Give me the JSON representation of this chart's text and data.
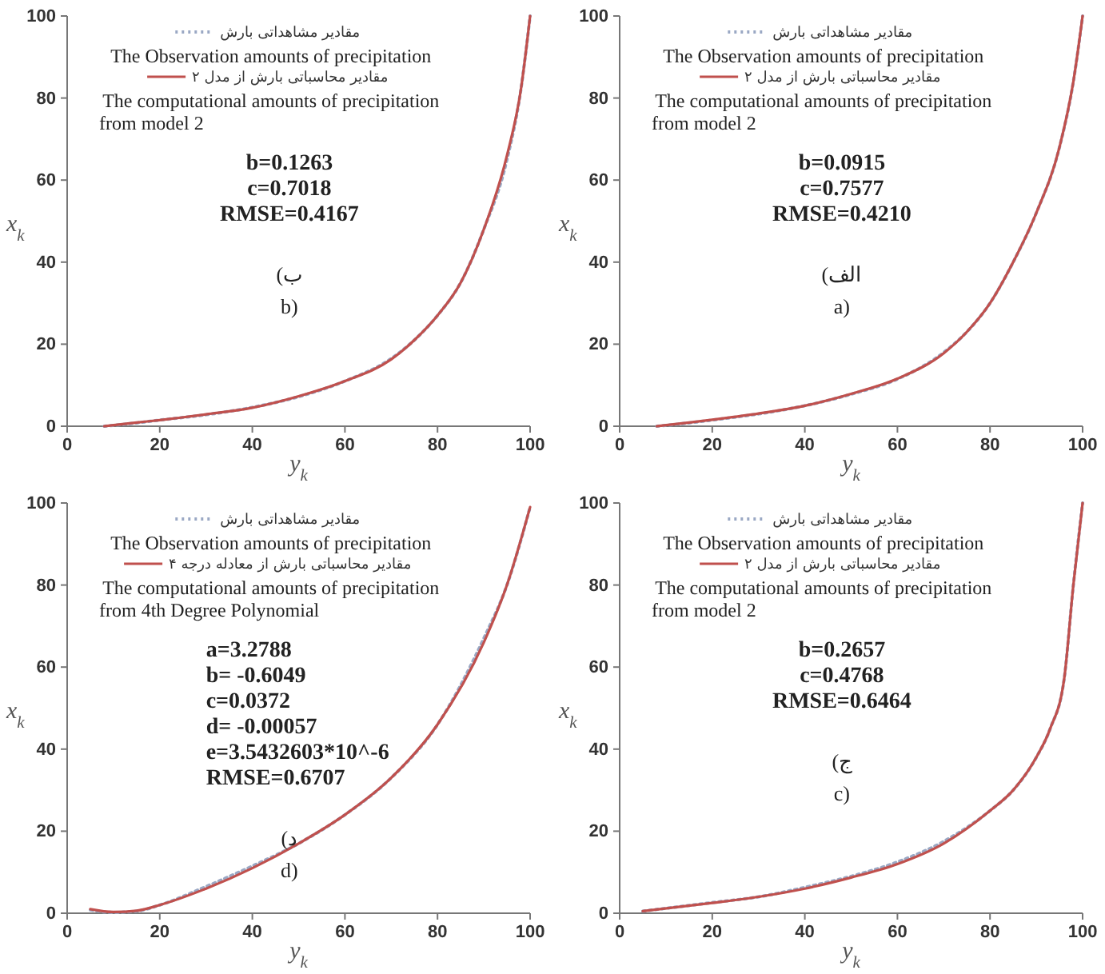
{
  "chart_data": [
    {
      "type": "line",
      "xlabel": "y$_{k}$",
      "ylabel": "x$_{k}$",
      "xlim": [
        0,
        100
      ],
      "ylim": [
        0,
        100
      ],
      "xticks": [
        0,
        20,
        40,
        60,
        80,
        100
      ],
      "yticks": [
        0,
        20,
        40,
        60,
        80,
        100
      ],
      "legend": "top",
      "annotations": [
        "b=0.1263",
        "c=0.7018",
        "RMSE=0.4167",
        "ب)",
        "b)"
      ],
      "series": [
        {
          "name": "مقادیر مشاهداتی بارش\nThe Observation amounts of precipitation",
          "color": "#9aa8c4",
          "line_style": "dotted",
          "x": [
            8,
            15,
            20,
            30,
            40,
            50,
            60,
            70,
            75,
            80,
            85,
            90,
            95,
            98,
            100
          ],
          "values": [
            0,
            0.8,
            1.5,
            2.8,
            4.6,
            7.2,
            11,
            16.5,
            21,
            27,
            35,
            48,
            65,
            82,
            100
          ]
        },
        {
          "name": "مقادیر محاسباتی بارش از مدل ۲\nThe computational amounts of precipitation from model 2",
          "color": "#c0504d",
          "line_style": "solid",
          "x": [
            8,
            15,
            20,
            30,
            40,
            50,
            60,
            70,
            75,
            80,
            85,
            90,
            95,
            98,
            100
          ],
          "values": [
            0,
            0.9,
            1.5,
            2.9,
            4.5,
            7.3,
            11,
            16.3,
            21,
            27,
            35,
            48,
            66,
            82,
            100
          ]
        }
      ]
    },
    {
      "type": "line",
      "xlabel": "y$_{k}$",
      "ylabel": "x$_{k}$",
      "xlim": [
        0,
        100
      ],
      "ylim": [
        0,
        100
      ],
      "xticks": [
        0,
        20,
        40,
        60,
        80,
        100
      ],
      "yticks": [
        0,
        20,
        40,
        60,
        80,
        100
      ],
      "legend": "top",
      "annotations": [
        "b=0.0915",
        "c=0.7577",
        "RMSE=0.4210",
        "الف)",
        "a)"
      ],
      "series": [
        {
          "name": "مقادیر مشاهداتی بارش\nThe Observation amounts of precipitation",
          "color": "#9aa8c4",
          "line_style": "dotted",
          "x": [
            8,
            15,
            20,
            30,
            40,
            50,
            60,
            70,
            75,
            80,
            85,
            90,
            95,
            98,
            100
          ],
          "values": [
            0,
            0.8,
            1.5,
            3,
            5,
            7.8,
            11.5,
            18,
            23,
            30,
            40,
            52,
            68,
            84,
            100
          ]
        },
        {
          "name": "مقادیر محاسباتی بارش از مدل ۲\nThe computational amounts of precipitation from model 2",
          "color": "#c0504d",
          "line_style": "solid",
          "x": [
            8,
            15,
            20,
            30,
            40,
            50,
            60,
            70,
            75,
            80,
            85,
            90,
            95,
            98,
            100
          ],
          "values": [
            0,
            0.9,
            1.6,
            3.1,
            5,
            7.9,
            11.6,
            17.8,
            23,
            30,
            40,
            52,
            68,
            84,
            100
          ]
        }
      ]
    },
    {
      "type": "line",
      "xlabel": "y$_{k}$",
      "ylabel": "x$_{k}$",
      "xlim": [
        0,
        100
      ],
      "ylim": [
        0,
        100
      ],
      "xticks": [
        0,
        20,
        40,
        60,
        80,
        100
      ],
      "yticks": [
        0,
        20,
        40,
        60,
        80,
        100
      ],
      "legend": "top",
      "annotations": [
        "a=3.2788",
        "b= -0.6049",
        "c=0.0372",
        "d= -0.00057",
        "e=3.5432603*10^-6",
        "RMSE=0.6707",
        "د)",
        "d)"
      ],
      "series": [
        {
          "name": "مقادیر مشاهداتی بارش\nThe Observation amounts of precipitation",
          "color": "#9aa8c4",
          "line_style": "dotted",
          "x": [
            5,
            10,
            15,
            20,
            30,
            40,
            50,
            60,
            70,
            80,
            90,
            95,
            100
          ],
          "values": [
            0.8,
            0.2,
            0.5,
            2,
            6.5,
            11.5,
            17,
            24,
            33,
            46,
            67,
            80,
            99
          ]
        },
        {
          "name": "مقادیر محاسباتی بارش از معادله درجه ۴\nThe computational amounts of precipitation from 4th Degree Polynomial",
          "color": "#c0504d",
          "line_style": "solid",
          "x": [
            5,
            10,
            15,
            20,
            30,
            40,
            50,
            60,
            70,
            80,
            90,
            95,
            100
          ],
          "values": [
            1,
            0.3,
            0.6,
            2,
            6,
            11,
            17,
            24,
            33,
            46,
            66,
            80,
            99
          ]
        }
      ]
    },
    {
      "type": "line",
      "xlabel": "y$_{k}$",
      "ylabel": "x$_{k}$",
      "xlim": [
        0,
        100
      ],
      "ylim": [
        0,
        100
      ],
      "xticks": [
        0,
        20,
        40,
        60,
        80,
        100
      ],
      "yticks": [
        0,
        20,
        40,
        60,
        80,
        100
      ],
      "legend": "top",
      "annotations": [
        "b=0.2657",
        "c=0.4768",
        "RMSE=0.6464",
        "ج)",
        "c)"
      ],
      "series": [
        {
          "name": "مقادیر مشاهداتی بارش\nThe Observation amounts of precipitation",
          "color": "#9aa8c4",
          "line_style": "dotted",
          "x": [
            5,
            20,
            30,
            40,
            50,
            60,
            70,
            80,
            85,
            90,
            93,
            96,
            98,
            100
          ],
          "values": [
            0.5,
            2.6,
            4,
            6.3,
            9,
            12.5,
            17.5,
            25,
            30,
            38,
            45,
            57,
            80,
            100
          ]
        },
        {
          "name": "مقادیر محاسباتی بارش از مدل ۲\nThe computational amounts of precipitation from model 2",
          "color": "#c0504d",
          "line_style": "solid",
          "x": [
            5,
            20,
            30,
            40,
            50,
            60,
            70,
            80,
            85,
            90,
            93,
            96,
            98,
            100
          ],
          "values": [
            0.5,
            2.5,
            4,
            6,
            8.7,
            12,
            17,
            25,
            30,
            38,
            45,
            57,
            80,
            100
          ]
        }
      ]
    }
  ]
}
